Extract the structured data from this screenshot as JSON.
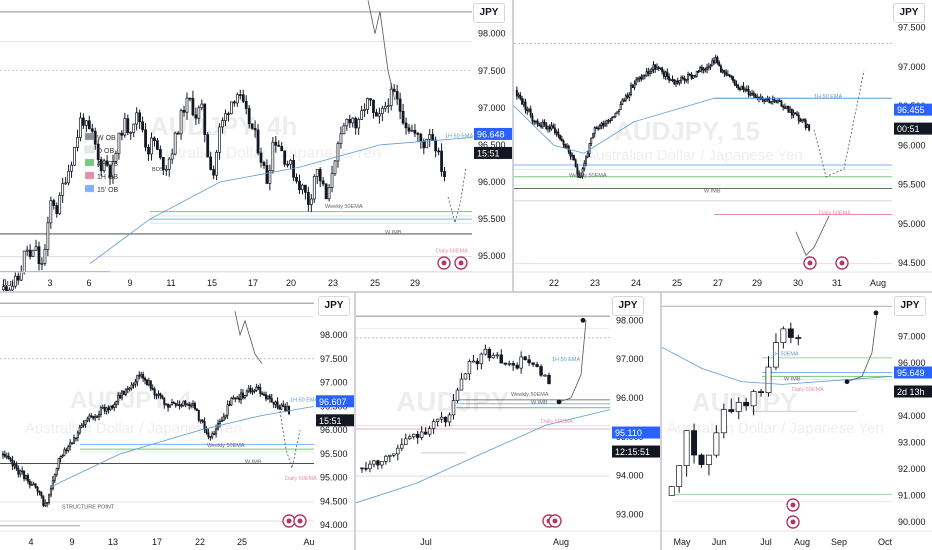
{
  "colors": {
    "up": "#ffffff",
    "down": "#131722",
    "wick": "#131722",
    "ema": "#5b9bd5",
    "fourH": "#7ac77a",
    "oneH": "#e58fa6",
    "m15": "#7fb0ff",
    "zoneDark": "#8a8d94",
    "zoneLight": "#e8e9ec",
    "priceTag": "#2962ff",
    "timeTag": "#131722"
  },
  "icons": [
    "lightning-icon",
    "target-icon"
  ],
  "chart_data": [
    {
      "type": "candlestick",
      "id": "p1",
      "currency": "JPY",
      "watermark": "AUDJPY, 4h",
      "watermark_sub": "Australian Dollar / Japanese Yen",
      "x_ticks": [
        "Jul",
        "3",
        "6",
        "9",
        "11",
        "15",
        "17",
        "20",
        "23",
        "25",
        "29"
      ],
      "y_ticks": [
        "98.000",
        "97.500",
        "97.000",
        "96.500",
        "96.000",
        "95.500",
        "95.000"
      ],
      "ylim": [
        94.8,
        98.4
      ],
      "price_tag": "96.648",
      "time_tag": "15:51",
      "legend": [
        "W OB",
        "D OB",
        "4H OB",
        "1H OB",
        "15' OB"
      ],
      "annotations": [
        "BOS",
        "Weekly 50EMA",
        "W IMB",
        "1H 50 EMA",
        "Daily 50EMA"
      ],
      "series": {
        "start": 94.55,
        "points": [
          [
            0,
            94.55
          ],
          [
            8,
            94.6
          ],
          [
            14,
            94.65
          ],
          [
            18,
            94.7
          ],
          [
            22,
            95.0
          ],
          [
            26,
            95.1
          ],
          [
            30,
            94.9
          ],
          [
            34,
            95.2
          ],
          [
            38,
            94.8
          ],
          [
            44,
            95.1
          ],
          [
            50,
            95.8
          ],
          [
            56,
            95.6
          ],
          [
            62,
            96.0
          ],
          [
            68,
            96.2
          ],
          [
            74,
            96.5
          ],
          [
            80,
            96.9
          ],
          [
            86,
            96.7
          ],
          [
            92,
            96.6
          ],
          [
            98,
            96.2
          ],
          [
            104,
            96.3
          ],
          [
            110,
            96.1
          ],
          [
            116,
            96.5
          ],
          [
            122,
            96.8
          ],
          [
            128,
            96.7
          ],
          [
            134,
            96.9
          ],
          [
            140,
            96.8
          ],
          [
            146,
            96.4
          ],
          [
            152,
            96.6
          ],
          [
            158,
            96.3
          ],
          [
            164,
            96.2
          ],
          [
            170,
            96.4
          ],
          [
            176,
            96.7
          ],
          [
            182,
            97.0
          ],
          [
            188,
            97.1
          ],
          [
            194,
            96.9
          ],
          [
            200,
            97.0
          ],
          [
            206,
            96.4
          ],
          [
            212,
            96.1
          ],
          [
            218,
            96.7
          ],
          [
            224,
            96.9
          ],
          [
            230,
            97.1
          ],
          [
            236,
            97.2
          ],
          [
            242,
            97.0
          ],
          [
            248,
            96.8
          ],
          [
            254,
            96.6
          ],
          [
            260,
            96.3
          ],
          [
            266,
            96.0
          ],
          [
            272,
            96.6
          ],
          [
            278,
            96.5
          ],
          [
            284,
            96.3
          ],
          [
            290,
            96.2
          ],
          [
            296,
            96.0
          ],
          [
            302,
            95.9
          ],
          [
            308,
            95.7
          ],
          [
            314,
            96.2
          ],
          [
            320,
            96.0
          ],
          [
            326,
            95.7
          ],
          [
            332,
            96.3
          ],
          [
            338,
            96.5
          ],
          [
            344,
            96.8
          ],
          [
            350,
            96.9
          ],
          [
            356,
            96.7
          ],
          [
            362,
            97.0
          ],
          [
            368,
            97.1
          ],
          [
            374,
            96.8
          ],
          [
            380,
            96.9
          ],
          [
            386,
            97.1
          ],
          [
            392,
            97.2
          ],
          [
            398,
            97.0
          ],
          [
            404,
            96.8
          ],
          [
            410,
            96.7
          ],
          [
            416,
            96.6
          ],
          [
            422,
            96.5
          ],
          [
            428,
            96.7
          ],
          [
            434,
            96.5
          ],
          [
            440,
            96.2
          ],
          [
            446,
            96.0
          ]
        ]
      }
    },
    {
      "type": "candlestick",
      "id": "p2",
      "currency": "JPY",
      "watermark": "AUDJPY, 15",
      "watermark_sub": "Australian Dollar / Japanese Yen",
      "x_ticks": [
        "22",
        "23",
        "24",
        "25",
        "27",
        "29",
        "30",
        "31",
        "Aug"
      ],
      "y_ticks": [
        "97.500",
        "97.000",
        "96.500",
        "96.000",
        "95.500",
        "95.000",
        "94.500"
      ],
      "ylim": [
        94.4,
        97.8
      ],
      "price_tag": "96.455",
      "time_tag": "00:51",
      "annotations": [
        "1H 50 EMA",
        "Weekly 50EMA",
        "W IMB",
        "Daily 50EMA"
      ]
    },
    {
      "type": "candlestick",
      "id": "p3",
      "currency": "JPY",
      "watermark": "AUDJPY, 4",
      "watermark_sub": "Australian Dollar / Japanese Yen",
      "x_ticks": [
        "4",
        "9",
        "13",
        "17",
        "22",
        "25",
        "Au"
      ],
      "y_ticks": [
        "98.500",
        "98.000",
        "97.500",
        "97.000",
        "96.500",
        "96.000",
        "95.500",
        "95.000",
        "94.500",
        "94.000"
      ],
      "ylim": [
        93.9,
        98.8
      ],
      "price_tag": "96.607",
      "time_tag": "15:51",
      "annotations": [
        "STRUCTURE POINT",
        "Weekly 50EMA",
        "W IMB",
        "1H 50 EMA",
        "Daily 50EMA"
      ]
    },
    {
      "type": "candlestick",
      "id": "p4",
      "currency": "JPY",
      "watermark": "AUDJPY",
      "x_ticks": [
        "Jul",
        "Aug"
      ],
      "y_ticks": [
        "98.000",
        "97.000",
        "96.000",
        "95.000",
        "94.000",
        "93.000"
      ],
      "ylim": [
        92.6,
        98.6
      ],
      "price_tag": "95.110",
      "time_tag": "12:15:51",
      "annotations": [
        "1H 50 EMA",
        "Weekly 50EMA",
        "W IMB",
        "Daily 50EMA"
      ]
    },
    {
      "type": "candlestick",
      "id": "p5",
      "currency": "JPY",
      "watermark": "AUDJPY",
      "watermark_sub": "Australian Dollar / Japanese Yen",
      "x_ticks": [
        "May",
        "Jun",
        "Jul",
        "Aug",
        "Sep",
        "Oct"
      ],
      "y_ticks": [
        "98.000",
        "97.000",
        "96.000",
        "95.000",
        "94.000",
        "93.000",
        "92.000",
        "91.000",
        "90.000"
      ],
      "ylim": [
        89.7,
        98.5
      ],
      "price_tag": "95.649",
      "time_tag": "2d 13h",
      "annotations": [
        "1H 50EMA",
        "W IMB",
        "Daily 50EMA"
      ]
    }
  ]
}
